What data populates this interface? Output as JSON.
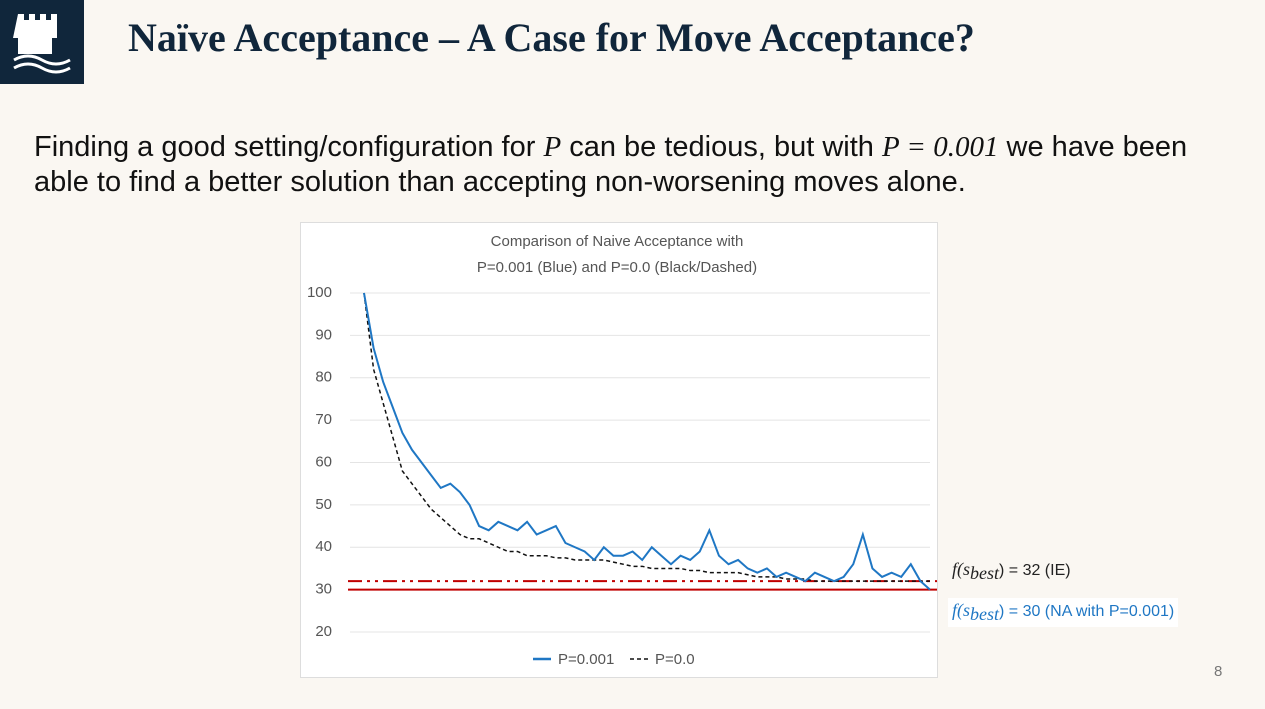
{
  "header": {
    "title": "Naïve Acceptance – A Case for Move Acceptance?"
  },
  "body": {
    "parts": [
      {
        "text": "Finding a good setting/configuration for ",
        "math": false
      },
      {
        "text": "P",
        "math": true
      },
      {
        "text": " can be tedious, but with ",
        "math": false
      },
      {
        "text": "P = 0.001",
        "math": true
      },
      {
        "text": " we have been able to find a better solution than accepting non-worsening moves alone.",
        "math": false
      }
    ]
  },
  "chart_data": {
    "type": "line",
    "title": [
      "Comparison of Naive Acceptance with",
      "P=0.001  (Blue) and P=0.0 (Black/Dashed)"
    ],
    "categories": [
      null,
      null,
      null,
      null,
      null,
      null,
      null,
      null,
      null,
      null,
      null,
      null,
      null,
      null,
      null,
      null,
      null,
      null,
      null,
      null,
      null,
      null,
      null,
      null,
      null,
      null,
      null,
      null,
      null,
      null,
      null,
      null,
      null,
      null,
      null,
      null,
      null,
      null,
      null,
      null,
      null,
      null,
      null,
      null,
      null,
      null,
      null,
      null,
      null,
      null,
      null,
      null,
      null,
      null,
      null,
      null,
      null,
      null,
      null,
      null
    ],
    "series": [
      {
        "name": "P=0.001",
        "color": "#1f77c4",
        "dash": "solid",
        "values": [
          100,
          87,
          79,
          73,
          67,
          63,
          60,
          57,
          54,
          55,
          53,
          50,
          45,
          44,
          46,
          45,
          44,
          46,
          43,
          44,
          45,
          41,
          40,
          39,
          37,
          40,
          38,
          38,
          39,
          37,
          40,
          38,
          36,
          38,
          37,
          39,
          44,
          38,
          36,
          37,
          35,
          34,
          35,
          33,
          34,
          33,
          32,
          34,
          33,
          32,
          33,
          36,
          43,
          35,
          33,
          34,
          33,
          36,
          32,
          30
        ]
      },
      {
        "name": "P=0.0",
        "color": "#111111",
        "dash": "dashed",
        "values": [
          100,
          82,
          74,
          66,
          58,
          55,
          52,
          49,
          47,
          45,
          43,
          42,
          42,
          41,
          40,
          39,
          39,
          38,
          38,
          38,
          37.5,
          37.5,
          37,
          37,
          37,
          37,
          36.5,
          36,
          35.5,
          35.5,
          35,
          35,
          35,
          35,
          34.5,
          34.5,
          34,
          34,
          34,
          34,
          33.5,
          33,
          33,
          33,
          32.5,
          32.5,
          32.5,
          32,
          32,
          32,
          32,
          32,
          32,
          32,
          32,
          32,
          32,
          32,
          32,
          32
        ]
      }
    ],
    "ylim": [
      20,
      100
    ],
    "yticks": [
      20,
      30,
      40,
      50,
      60,
      70,
      80,
      90,
      100
    ],
    "grid": true,
    "reference_lines": [
      {
        "value": 32,
        "color": "#c00000",
        "style": "dashdot",
        "label": {
          "func": "f(s",
          "sub": "best",
          "rest": ") = 32 (IE)"
        },
        "label_color": "#222222"
      },
      {
        "value": 30,
        "color": "#c00000",
        "style": "solid",
        "label": {
          "func": "f(s",
          "sub": "best",
          "rest": ") = 30 (NA with P=0.001)"
        },
        "label_color": "#1f77c4"
      }
    ]
  },
  "footer": {
    "page": "8"
  }
}
